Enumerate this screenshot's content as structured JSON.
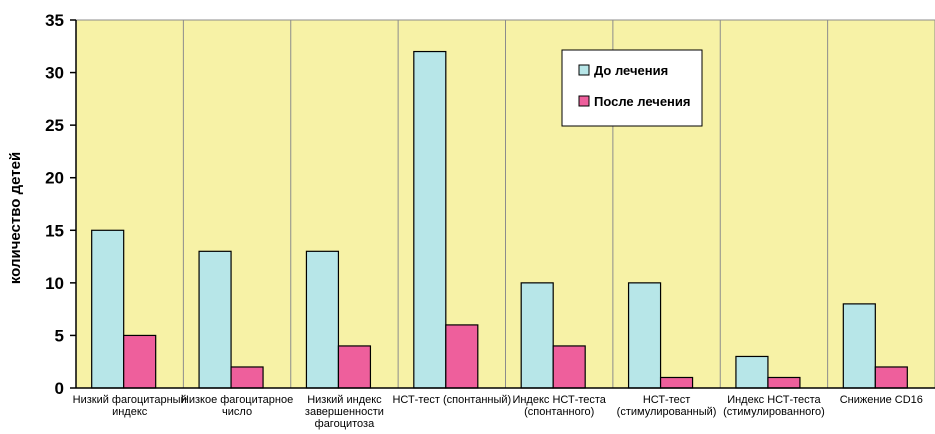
{
  "chart_data": {
    "type": "bar",
    "title": "",
    "xlabel": "",
    "ylabel": "количество детей",
    "ylim": [
      0,
      35
    ],
    "yticks": [
      0,
      5,
      10,
      15,
      20,
      25,
      30,
      35
    ],
    "grid": "vertical category separators",
    "legend_position": "top-right (inside plot)",
    "categories": [
      [
        "Низкий фагоцитарный",
        "индекс"
      ],
      [
        "Низкое фагоцитарное",
        "число"
      ],
      [
        "Низкий индекс",
        "завершенности",
        "фагоцитоза"
      ],
      [
        "НСТ-тест (спонтанный)"
      ],
      [
        "Индекс НСТ-теста",
        "(спонтанного)"
      ],
      [
        "НСТ-тест",
        "(стимулированный)"
      ],
      [
        "Индекс НСТ-теста",
        "(стимулированного)"
      ],
      [
        "Снижение CD16"
      ]
    ],
    "series": [
      {
        "name": "До лечения",
        "color": "#b7e6e8",
        "values": [
          15,
          13,
          13,
          32,
          10,
          10,
          3,
          8
        ]
      },
      {
        "name": "После лечения",
        "color": "#ee5f9c",
        "values": [
          5,
          2,
          4,
          6,
          4,
          1,
          1,
          2
        ]
      }
    ],
    "plot_background": "#f7f2a6"
  }
}
